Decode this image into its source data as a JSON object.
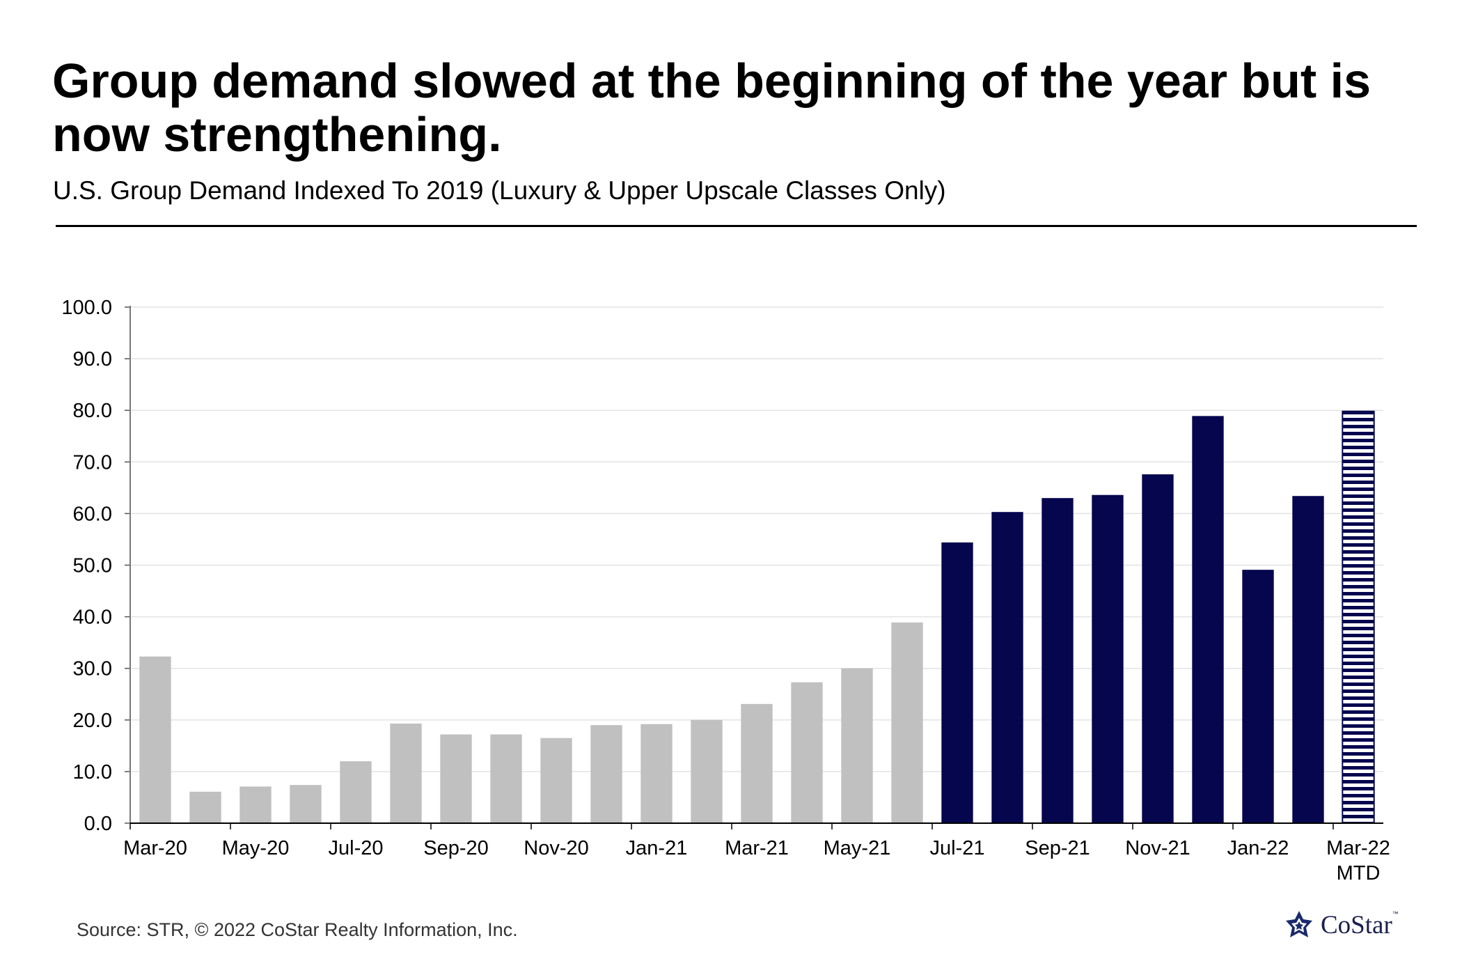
{
  "title": "Group demand slowed at the beginning of the year but is now strengthening.",
  "subtitle": "U.S. Group Demand Indexed To 2019 (Luxury & Upper Upscale Classes Only)",
  "source": "Source: STR, © 2022  CoStar Realty Information, Inc.",
  "logo": {
    "text": "CoStar",
    "tm": "™"
  },
  "colors": {
    "past": "#c0c0c0",
    "recent": "#06064f",
    "mtd_stripe": "#06064f"
  },
  "chart_data": {
    "type": "bar",
    "title": "Group demand slowed at the beginning of the year but is now strengthening.",
    "subtitle": "U.S. Group Demand Indexed To 2019 (Luxury & Upper Upscale Classes Only)",
    "xlabel": "",
    "ylabel": "",
    "ylim": [
      0,
      100
    ],
    "yticks": [
      "0.0",
      "10.0",
      "20.0",
      "30.0",
      "40.0",
      "50.0",
      "60.0",
      "70.0",
      "80.0",
      "90.0",
      "100.0"
    ],
    "grid": true,
    "categories": [
      "Mar-20",
      "Apr-20",
      "May-20",
      "Jun-20",
      "Jul-20",
      "Aug-20",
      "Sep-20",
      "Oct-20",
      "Nov-20",
      "Dec-20",
      "Jan-21",
      "Feb-21",
      "Mar-21",
      "Apr-21",
      "May-21",
      "Jun-21",
      "Jul-21",
      "Aug-21",
      "Sep-21",
      "Oct-21",
      "Nov-21",
      "Dec-21",
      "Jan-22",
      "Feb-22",
      "Mar-22 MTD"
    ],
    "x_tick_labels": [
      {
        "index": 0,
        "lines": [
          "Mar-20"
        ]
      },
      {
        "index": 2,
        "lines": [
          "May-20"
        ]
      },
      {
        "index": 4,
        "lines": [
          "Jul-20"
        ]
      },
      {
        "index": 6,
        "lines": [
          "Sep-20"
        ]
      },
      {
        "index": 8,
        "lines": [
          "Nov-20"
        ]
      },
      {
        "index": 10,
        "lines": [
          "Jan-21"
        ]
      },
      {
        "index": 12,
        "lines": [
          "Mar-21"
        ]
      },
      {
        "index": 14,
        "lines": [
          "May-21"
        ]
      },
      {
        "index": 16,
        "lines": [
          "Jul-21"
        ]
      },
      {
        "index": 18,
        "lines": [
          "Sep-21"
        ]
      },
      {
        "index": 20,
        "lines": [
          "Nov-21"
        ]
      },
      {
        "index": 22,
        "lines": [
          "Jan-22"
        ]
      },
      {
        "index": 24,
        "lines": [
          "Mar-22",
          "MTD"
        ]
      }
    ],
    "values": [
      32.3,
      6.1,
      7.1,
      7.4,
      12.0,
      19.3,
      17.2,
      17.2,
      16.5,
      19.0,
      19.2,
      20.0,
      23.1,
      27.3,
      30.0,
      38.9,
      54.4,
      60.3,
      63.0,
      63.6,
      67.6,
      78.9,
      49.1,
      63.4,
      79.8
    ],
    "styles": [
      "past",
      "past",
      "past",
      "past",
      "past",
      "past",
      "past",
      "past",
      "past",
      "past",
      "past",
      "past",
      "past",
      "past",
      "past",
      "past",
      "recent",
      "recent",
      "recent",
      "recent",
      "recent",
      "recent",
      "recent",
      "recent",
      "mtd"
    ]
  }
}
